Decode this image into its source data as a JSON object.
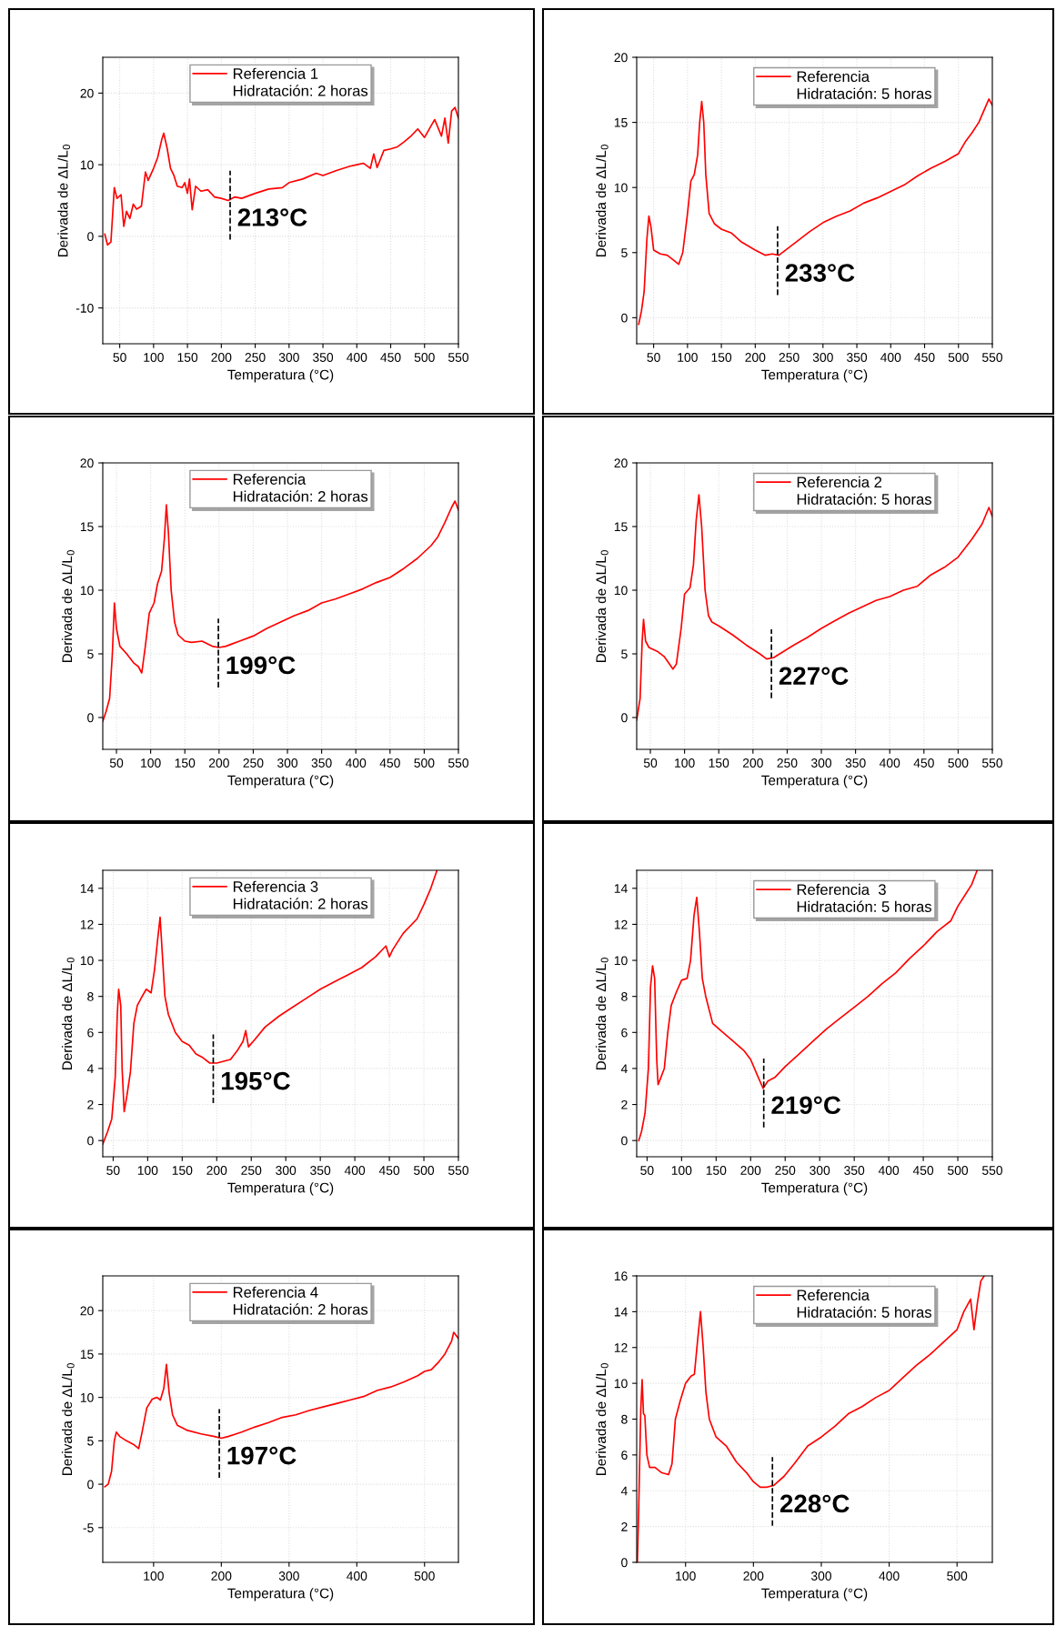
{
  "chart_data": [
    {
      "type": "line",
      "xlabel": "Temperatura (°C)",
      "ylabel": "Derivada de ΔL/L$_{0}$",
      "xlim": [
        25,
        550
      ],
      "ylim": [
        -15,
        25
      ],
      "xticks": [
        50,
        100,
        150,
        200,
        250,
        300,
        350,
        400,
        450,
        500,
        550
      ],
      "yticks": [
        -10,
        0,
        10,
        20
      ],
      "grid": true,
      "legend": "top",
      "annotations": [
        "Hidratación: 2 horas"
      ],
      "ref_lines": [
        {
          "axis": "x",
          "value": 213,
          "label": "213°C",
          "line_style": "dashed",
          "color": "#000000"
        }
      ],
      "series": [
        {
          "name": "Referencia 1",
          "color": "#ff0000",
          "x": [
            28,
            32,
            37,
            42,
            46,
            52,
            56,
            60,
            65,
            70,
            75,
            82,
            88,
            92,
            100,
            106,
            112,
            115,
            120,
            125,
            130,
            135,
            142,
            146,
            150,
            153,
            157,
            162,
            170,
            180,
            190,
            200,
            210,
            220,
            230,
            250,
            270,
            290,
            300,
            320,
            340,
            350,
            370,
            390,
            400,
            410,
            420,
            425,
            430,
            440,
            450,
            460,
            470,
            480,
            490,
            500,
            510,
            515,
            525,
            530,
            535,
            540,
            545,
            550
          ],
          "values": [
            0.3,
            -1.2,
            -0.8,
            6.8,
            5.3,
            5.8,
            1.4,
            3.5,
            2.5,
            4.5,
            3.8,
            4.2,
            9,
            7.8,
            9.5,
            11,
            13.5,
            14.4,
            12.3,
            9.5,
            8.5,
            7,
            6.8,
            7.5,
            6,
            8,
            3.7,
            7,
            6.3,
            6.5,
            5.5,
            5.3,
            5,
            5.5,
            5.3,
            6,
            6.6,
            6.8,
            7.5,
            8,
            8.8,
            8.5,
            9.2,
            9.8,
            10,
            10.2,
            9.5,
            11.5,
            9.6,
            12,
            12.2,
            12.5,
            13.2,
            14,
            15,
            13.8,
            15.5,
            16.3,
            14,
            16.5,
            13,
            17.5,
            18,
            16.5
          ]
        }
      ]
    },
    {
      "type": "line",
      "xlabel": "Temperatura (°C)",
      "ylabel": "Derivada de ΔL/L$_{0}$",
      "xlim": [
        25,
        550
      ],
      "ylim": [
        -2,
        20
      ],
      "xticks": [
        50,
        100,
        150,
        200,
        250,
        300,
        350,
        400,
        450,
        500,
        550
      ],
      "yticks": [
        0,
        5,
        10,
        15,
        20
      ],
      "grid": true,
      "legend": "top right",
      "annotations": [
        "Hidratación: 5 horas"
      ],
      "ref_lines": [
        {
          "axis": "x",
          "value": 233,
          "label": "233°C",
          "line_style": "dashed",
          "color": "#000000"
        }
      ],
      "series": [
        {
          "name": "Referencia",
          "color": "#ff0000",
          "x": [
            28,
            32,
            36,
            40,
            43,
            46,
            50,
            60,
            70,
            80,
            87,
            93,
            100,
            105,
            110,
            115,
            118,
            121,
            124,
            127,
            132,
            140,
            150,
            165,
            180,
            200,
            215,
            225,
            235,
            245,
            260,
            280,
            300,
            320,
            340,
            360,
            380,
            400,
            420,
            440,
            460,
            480,
            500,
            510,
            520,
            530,
            540,
            545,
            550
          ],
          "values": [
            -0.5,
            0.5,
            2,
            6,
            7.8,
            7,
            5.2,
            4.9,
            4.8,
            4.4,
            4.1,
            5,
            8,
            10.5,
            11,
            12.5,
            15,
            16.6,
            15,
            11,
            8,
            7.2,
            6.8,
            6.5,
            5.8,
            5.2,
            4.8,
            4.9,
            4.8,
            5.2,
            5.8,
            6.6,
            7.3,
            7.8,
            8.2,
            8.8,
            9.2,
            9.7,
            10.2,
            10.9,
            11.5,
            12,
            12.6,
            13.5,
            14.2,
            15,
            16.2,
            16.8,
            16.3
          ]
        }
      ]
    },
    {
      "type": "line",
      "xlabel": "Temperatura (°C)",
      "ylabel": "Derivada de ΔL/L$_{0}$",
      "xlim": [
        30,
        550
      ],
      "ylim": [
        -2.5,
        20
      ],
      "xticks": [
        50,
        100,
        150,
        200,
        250,
        300,
        350,
        400,
        450,
        500,
        550
      ],
      "yticks": [
        0,
        5,
        10,
        15,
        20
      ],
      "grid": true,
      "legend": "top",
      "annotations": [
        "Hidratación: 2 horas"
      ],
      "ref_lines": [
        {
          "axis": "x",
          "value": 199,
          "label": "199°C",
          "line_style": "dashed",
          "color": "#000000"
        }
      ],
      "series": [
        {
          "name": "Referencia",
          "color": "#ff0000",
          "x": [
            30,
            35,
            40,
            44,
            47,
            50,
            55,
            65,
            75,
            82,
            87,
            92,
            98,
            105,
            110,
            116,
            120,
            123,
            126,
            130,
            135,
            140,
            150,
            160,
            175,
            190,
            200,
            210,
            230,
            250,
            270,
            290,
            310,
            330,
            350,
            370,
            390,
            410,
            430,
            450,
            470,
            490,
            510,
            520,
            530,
            540,
            545,
            550
          ],
          "values": [
            -0.3,
            0.5,
            1.5,
            5,
            9,
            7,
            5.6,
            5,
            4.3,
            4,
            3.5,
            5.5,
            8.2,
            9,
            10.5,
            11.5,
            14,
            16.7,
            14.5,
            10,
            7.5,
            6.5,
            6,
            5.9,
            6,
            5.6,
            5.5,
            5.6,
            6,
            6.4,
            7,
            7.5,
            8,
            8.4,
            9,
            9.3,
            9.7,
            10.1,
            10.6,
            11,
            11.7,
            12.5,
            13.5,
            14.2,
            15.3,
            16.5,
            17,
            16.3
          ]
        }
      ]
    },
    {
      "type": "line",
      "xlabel": "Temperatura (°C)",
      "ylabel": "Derivada de ΔL/L$_{0}$",
      "xlim": [
        30,
        550
      ],
      "ylim": [
        -2.5,
        20
      ],
      "xticks": [
        50,
        100,
        150,
        200,
        250,
        300,
        350,
        400,
        450,
        500,
        550
      ],
      "yticks": [
        0,
        5,
        10,
        15,
        20
      ],
      "grid": true,
      "legend": "top right",
      "annotations": [
        "Hidratación: 5 horas"
      ],
      "ref_lines": [
        {
          "axis": "x",
          "value": 227,
          "label": "227°C",
          "line_style": "dashed",
          "color": "#000000"
        }
      ],
      "series": [
        {
          "name": "Referencia 2",
          "color": "#ff0000",
          "x": [
            30,
            35,
            38,
            40,
            43,
            48,
            60,
            70,
            78,
            83,
            88,
            95,
            100,
            108,
            113,
            117,
            121,
            125,
            130,
            135,
            140,
            150,
            170,
            190,
            210,
            220,
            230,
            245,
            260,
            280,
            300,
            320,
            340,
            360,
            380,
            400,
            420,
            440,
            460,
            480,
            500,
            520,
            535,
            545,
            550
          ],
          "values": [
            -0.2,
            1.5,
            6,
            7.7,
            6,
            5.5,
            5.2,
            4.8,
            4.2,
            3.8,
            4.2,
            7,
            9.7,
            10.2,
            12,
            15.5,
            17.5,
            15,
            10,
            8,
            7.5,
            7.2,
            6.5,
            5.7,
            5,
            4.6,
            4.7,
            5.2,
            5.7,
            6.3,
            7,
            7.6,
            8.2,
            8.7,
            9.2,
            9.5,
            10,
            10.3,
            11.2,
            11.8,
            12.6,
            14,
            15.2,
            16.5,
            15.8
          ]
        }
      ]
    },
    {
      "type": "line",
      "xlabel": "Temperatura (°C)",
      "ylabel": "Derivada de ΔL/L$_{0}$",
      "xlim": [
        35,
        550
      ],
      "ylim": [
        -0.9,
        15
      ],
      "xticks": [
        50,
        100,
        150,
        200,
        250,
        300,
        350,
        400,
        450,
        500,
        550
      ],
      "yticks": [
        0,
        2,
        4,
        6,
        8,
        10,
        12,
        14
      ],
      "grid": true,
      "legend": "top",
      "annotations": [
        "Hidratación: 2 horas"
      ],
      "ref_lines": [
        {
          "axis": "x",
          "value": 195,
          "label": "195°C",
          "line_style": "dashed",
          "color": "#000000"
        }
      ],
      "series": [
        {
          "name": "Referencia 3",
          "color": "#ff0000",
          "x": [
            35,
            42,
            48,
            53,
            56,
            58,
            61,
            63,
            66,
            70,
            75,
            80,
            85,
            92,
            98,
            105,
            110,
            114,
            118,
            121,
            125,
            130,
            140,
            150,
            160,
            170,
            180,
            190,
            200,
            210,
            220,
            230,
            238,
            242,
            246,
            255,
            270,
            290,
            310,
            330,
            350,
            370,
            390,
            410,
            430,
            445,
            450,
            455,
            470,
            490,
            500,
            510,
            519
          ],
          "values": [
            -0.2,
            0.5,
            1.2,
            3.5,
            7,
            8.4,
            7.5,
            4,
            1.6,
            2.5,
            3.8,
            6.5,
            7.5,
            8,
            8.4,
            8.2,
            9.5,
            11,
            12.4,
            10.5,
            8,
            7,
            6,
            5.5,
            5.3,
            4.8,
            4.6,
            4.3,
            4.3,
            4.4,
            4.5,
            5,
            5.5,
            6.1,
            5.2,
            5.6,
            6.3,
            6.9,
            7.4,
            7.9,
            8.4,
            8.8,
            9.2,
            9.6,
            10.2,
            10.8,
            10.2,
            10.6,
            11.5,
            12.3,
            13.1,
            14,
            15
          ]
        }
      ]
    },
    {
      "type": "line",
      "xlabel": "Temperatura (°C)",
      "ylabel": "Derivada de ΔL/L$_{0}$",
      "xlim": [
        35,
        550
      ],
      "ylim": [
        -0.9,
        15
      ],
      "xticks": [
        50,
        100,
        150,
        200,
        250,
        300,
        350,
        400,
        450,
        500,
        550
      ],
      "yticks": [
        0,
        2,
        4,
        6,
        8,
        10,
        12,
        14
      ],
      "grid": true,
      "legend": "top right",
      "annotations": [
        "Hidratación: 5 horas"
      ],
      "ref_lines": [
        {
          "axis": "x",
          "value": 219,
          "label": "219°C",
          "line_style": "dashed",
          "color": "#000000"
        }
      ],
      "series": [
        {
          "name": "Referencia  3",
          "color": "#ff0000",
          "x": [
            38,
            42,
            47,
            52,
            55,
            58,
            61,
            64,
            66,
            70,
            75,
            80,
            85,
            92,
            100,
            108,
            113,
            118,
            122,
            126,
            130,
            135,
            145,
            160,
            175,
            190,
            200,
            210,
            218,
            225,
            235,
            250,
            270,
            290,
            310,
            330,
            350,
            370,
            390,
            410,
            430,
            450,
            470,
            490,
            500,
            510,
            520,
            528
          ],
          "values": [
            0,
            0.5,
            1.5,
            4,
            8.5,
            9.7,
            9,
            4.5,
            3.1,
            3.5,
            4,
            6,
            7.5,
            8.2,
            8.9,
            9,
            10,
            12.5,
            13.5,
            11.5,
            9,
            8,
            6.5,
            6,
            5.5,
            5,
            4.5,
            3.6,
            2.9,
            3.3,
            3.5,
            4.1,
            4.8,
            5.5,
            6.2,
            6.8,
            7.4,
            8,
            8.7,
            9.3,
            10.1,
            10.8,
            11.6,
            12.2,
            13,
            13.6,
            14.2,
            15
          ]
        }
      ]
    },
    {
      "type": "line",
      "xlabel": "Temperatura (°C)",
      "ylabel": "Derivada de ΔL/L$_{0}$",
      "xlim": [
        25,
        550
      ],
      "ylim": [
        -9,
        24
      ],
      "xticks": [
        100,
        200,
        300,
        400,
        500
      ],
      "yticks": [
        -5,
        0,
        5,
        10,
        15,
        20
      ],
      "grid": true,
      "legend": "top",
      "annotations": [
        "Hidratación: 2 horas"
      ],
      "ref_lines": [
        {
          "axis": "x",
          "value": 197,
          "label": "197°C",
          "line_style": "dashed",
          "color": "#000000"
        }
      ],
      "series": [
        {
          "name": "Referencia 4",
          "color": "#ff0000",
          "x": [
            28,
            33,
            38,
            42,
            45,
            50,
            60,
            70,
            78,
            83,
            90,
            98,
            105,
            110,
            115,
            119,
            123,
            128,
            135,
            150,
            170,
            190,
            200,
            210,
            230,
            250,
            270,
            290,
            310,
            330,
            350,
            370,
            390,
            410,
            430,
            450,
            470,
            490,
            500,
            510,
            520,
            530,
            540,
            543,
            550
          ],
          "values": [
            -0.3,
            0,
            1.5,
            5,
            6,
            5.5,
            5,
            4.6,
            4.1,
            6,
            8.8,
            9.8,
            10,
            9.7,
            11,
            13.8,
            10.5,
            8,
            6.8,
            6.2,
            5.8,
            5.5,
            5.3,
            5.5,
            6,
            6.6,
            7.1,
            7.7,
            8,
            8.5,
            8.9,
            9.3,
            9.7,
            10.1,
            10.8,
            11.2,
            11.8,
            12.5,
            13,
            13.2,
            14,
            15,
            16.5,
            17.5,
            16.8
          ]
        }
      ]
    },
    {
      "type": "line",
      "xlabel": "Temperatura (°C)",
      "ylabel": "Derivada de ΔL/L$_{0}$",
      "xlim": [
        28,
        552
      ],
      "ylim": [
        0,
        16
      ],
      "xticks": [
        100,
        200,
        300,
        400,
        500
      ],
      "yticks": [
        0,
        2,
        4,
        6,
        8,
        10,
        12,
        14,
        16
      ],
      "grid": true,
      "legend": "top right",
      "annotations": [
        "Hidratación: 5 horas"
      ],
      "ref_lines": [
        {
          "axis": "x",
          "value": 228,
          "label": "228°C",
          "line_style": "dashed",
          "color": "#000000"
        }
      ],
      "series": [
        {
          "name": "Referencia",
          "color": "#ff0000",
          "x": [
            29,
            31,
            34,
            36,
            38,
            40,
            43,
            47,
            55,
            65,
            75,
            80,
            85,
            92,
            100,
            108,
            113,
            118,
            122,
            126,
            130,
            135,
            145,
            160,
            175,
            190,
            200,
            210,
            220,
            230,
            245,
            260,
            280,
            300,
            320,
            340,
            360,
            380,
            400,
            420,
            440,
            460,
            480,
            500,
            510,
            520,
            525,
            530,
            535,
            540
          ],
          "values": [
            0,
            3,
            8.5,
            10.2,
            8.3,
            8.2,
            6,
            5.3,
            5.3,
            5,
            4.9,
            5.5,
            8,
            9,
            10,
            10.4,
            10.5,
            12.5,
            14,
            12,
            9.5,
            8,
            7,
            6.5,
            5.6,
            5,
            4.5,
            4.2,
            4.2,
            4.3,
            4.8,
            5.5,
            6.5,
            7,
            7.6,
            8.3,
            8.7,
            9.2,
            9.6,
            10.3,
            11,
            11.6,
            12.3,
            13,
            14,
            14.7,
            13,
            14.5,
            15.7,
            16
          ]
        }
      ]
    }
  ]
}
